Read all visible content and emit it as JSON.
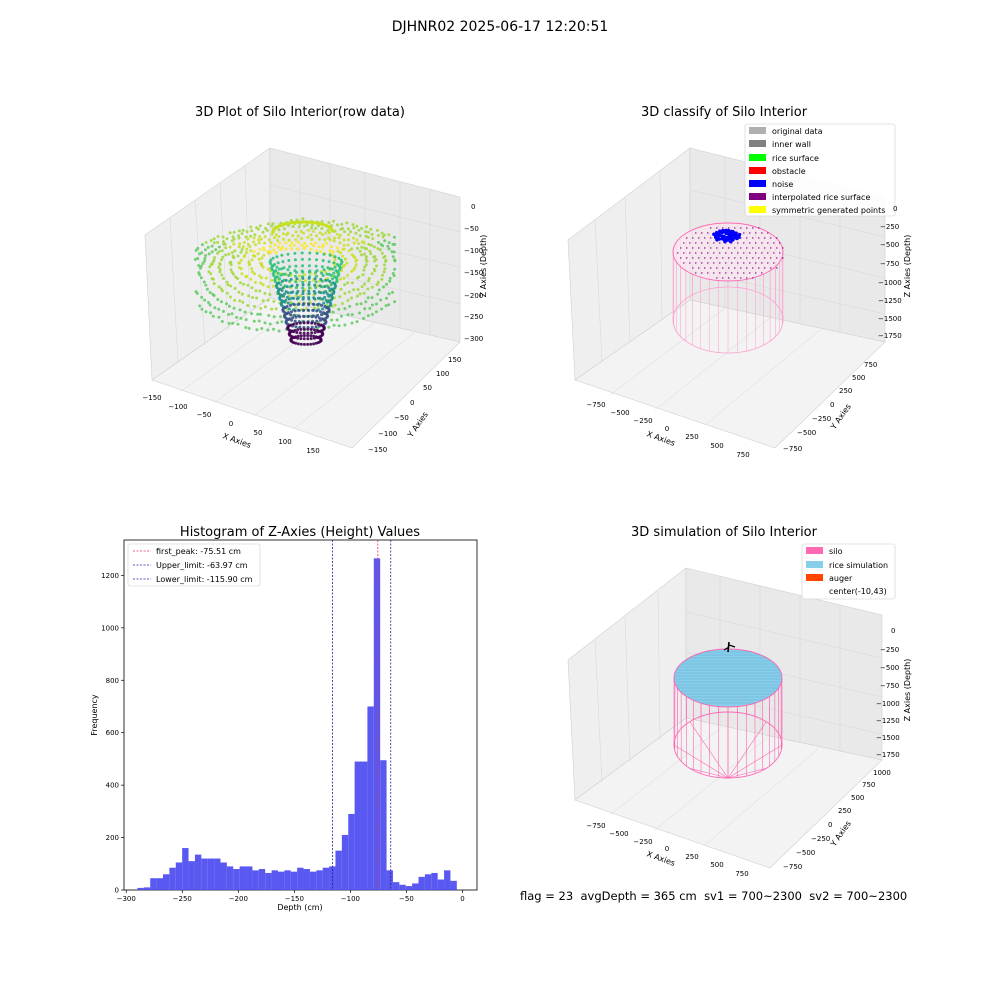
{
  "figure_title": "DJHNR02 2025-06-17 12:20:51",
  "status": {
    "flag": "flag = 23",
    "avg_depth": "avgDepth = 365 cm",
    "sv1": "sv1 = 700~2300",
    "sv2": "sv2 = 700~2300"
  },
  "colors": {
    "histogram_bar": "#5050f0",
    "first_peak_line": "#e03050",
    "limit_lines": "#2020a0",
    "silo": "#ff69b4",
    "rice_simulation": "#87ceeb",
    "auger": "#ff4500",
    "noise": "#0000ff",
    "rice_surface": "#00ff00",
    "obstacle": "#ff0000",
    "inner_wall": "#808080",
    "original_data": "#b0b0b0",
    "interpolated_rice_surface": "#800080",
    "symmetric_generated_points": "#ffff00"
  },
  "chart_data": [
    {
      "type": "scatter",
      "title": "3D Plot of Silo Interior(row data)",
      "xlabel": "X Axies",
      "ylabel": "Y Axies",
      "zlabel": "Z Axies (Depth)",
      "xticks": [
        "−150",
        "−100",
        "−50",
        "0",
        "50",
        "100",
        "150"
      ],
      "yticks": [
        "−150",
        "−100",
        "−50",
        "0",
        "50",
        "100",
        "150"
      ],
      "zticks": [
        "0",
        "−50",
        "−100",
        "−150",
        "−200",
        "−250",
        "−300"
      ],
      "xlim": [
        -150,
        150
      ],
      "ylim": [
        -150,
        150
      ],
      "zlim": [
        -300,
        0
      ],
      "colormap": "viridis"
    },
    {
      "type": "scatter",
      "title": "3D classify of Silo Interior",
      "xlabel": "X Axies",
      "ylabel": "Y Axies",
      "zlabel": "Z Axies (Depth)",
      "xticks": [
        "−750",
        "−500",
        "−250",
        "0",
        "250",
        "500",
        "750"
      ],
      "yticks": [
        "−750",
        "−500",
        "−250",
        "0",
        "250",
        "500",
        "750"
      ],
      "zticks": [
        "0",
        "−250",
        "−500",
        "−750",
        "−1000",
        "−1250",
        "−1500",
        "−1750"
      ],
      "legend_placement": "top-right",
      "legend": [
        {
          "label": "original data",
          "color": "#b0b0b0"
        },
        {
          "label": "inner wall",
          "color": "#808080"
        },
        {
          "label": "rice surface",
          "color": "#00ff00"
        },
        {
          "label": "obstacle",
          "color": "#ff0000"
        },
        {
          "label": "noise",
          "color": "#0000ff"
        },
        {
          "label": "interpolated rice surface",
          "color": "#800080"
        },
        {
          "label": "symmetric generated points",
          "color": "#ffff00"
        }
      ]
    },
    {
      "type": "bar",
      "title": "Histogram of Z-Axies (Height) Values",
      "xlabel": "Depth (cm)",
      "ylabel": "Frequency",
      "xlim": [
        -302,
        13
      ],
      "ylim": [
        0,
        1335
      ],
      "xticks": [
        -300,
        -250,
        -200,
        -150,
        -100,
        -50,
        0
      ],
      "xtick_labels": [
        "−300",
        "−250",
        "−200",
        "−150",
        "−100",
        "−50",
        "0"
      ],
      "yticks": [
        0,
        200,
        400,
        600,
        800,
        1000,
        1200
      ],
      "yticks_labels": [
        "0",
        "200",
        "400",
        "600",
        "800",
        "1000",
        "1200"
      ],
      "bin_start": -290,
      "bin_width": 5.7,
      "values": [
        8,
        10,
        45,
        45,
        60,
        85,
        105,
        160,
        110,
        135,
        120,
        120,
        120,
        105,
        90,
        80,
        90,
        90,
        75,
        80,
        65,
        75,
        70,
        75,
        70,
        85,
        80,
        70,
        75,
        85,
        90,
        150,
        210,
        290,
        490,
        490,
        700,
        1265,
        495,
        75,
        30,
        20,
        15,
        25,
        50,
        60,
        65,
        40,
        75,
        35
      ],
      "grid": false,
      "legend_placement": "top-left",
      "vlines": [
        {
          "label": "first_peak: -75.51 cm",
          "x": -75.51,
          "color": "#e03050"
        },
        {
          "label": "Upper_limit: -63.97 cm",
          "x": -63.97,
          "color": "#2020a0"
        },
        {
          "label": "Lower_limit: -115.90 cm",
          "x": -115.9,
          "color": "#2020a0"
        }
      ]
    },
    {
      "type": "scatter",
      "title": "3D simulation of Silo Interior",
      "xlabel": "X Axies",
      "ylabel": "Y Axies",
      "zlabel": "Z Axies (Depth)",
      "xticks": [
        "−750",
        "−500",
        "−250",
        "0",
        "250",
        "500",
        "750"
      ],
      "yticks": [
        "−750",
        "−500",
        "−250",
        "0",
        "250",
        "500",
        "750",
        "1000"
      ],
      "zticks": [
        "0",
        "−250",
        "−500",
        "−750",
        "−1000",
        "−1250",
        "−1500",
        "−1750"
      ],
      "legend_placement": "top-right",
      "legend": [
        {
          "label": "silo",
          "color": "#ff69b4"
        },
        {
          "label": "rice simulation",
          "color": "#87ceeb"
        },
        {
          "label": "auger",
          "color": "#ff4500"
        },
        {
          "label": "center(-10,43)",
          "color": ""
        }
      ]
    }
  ]
}
